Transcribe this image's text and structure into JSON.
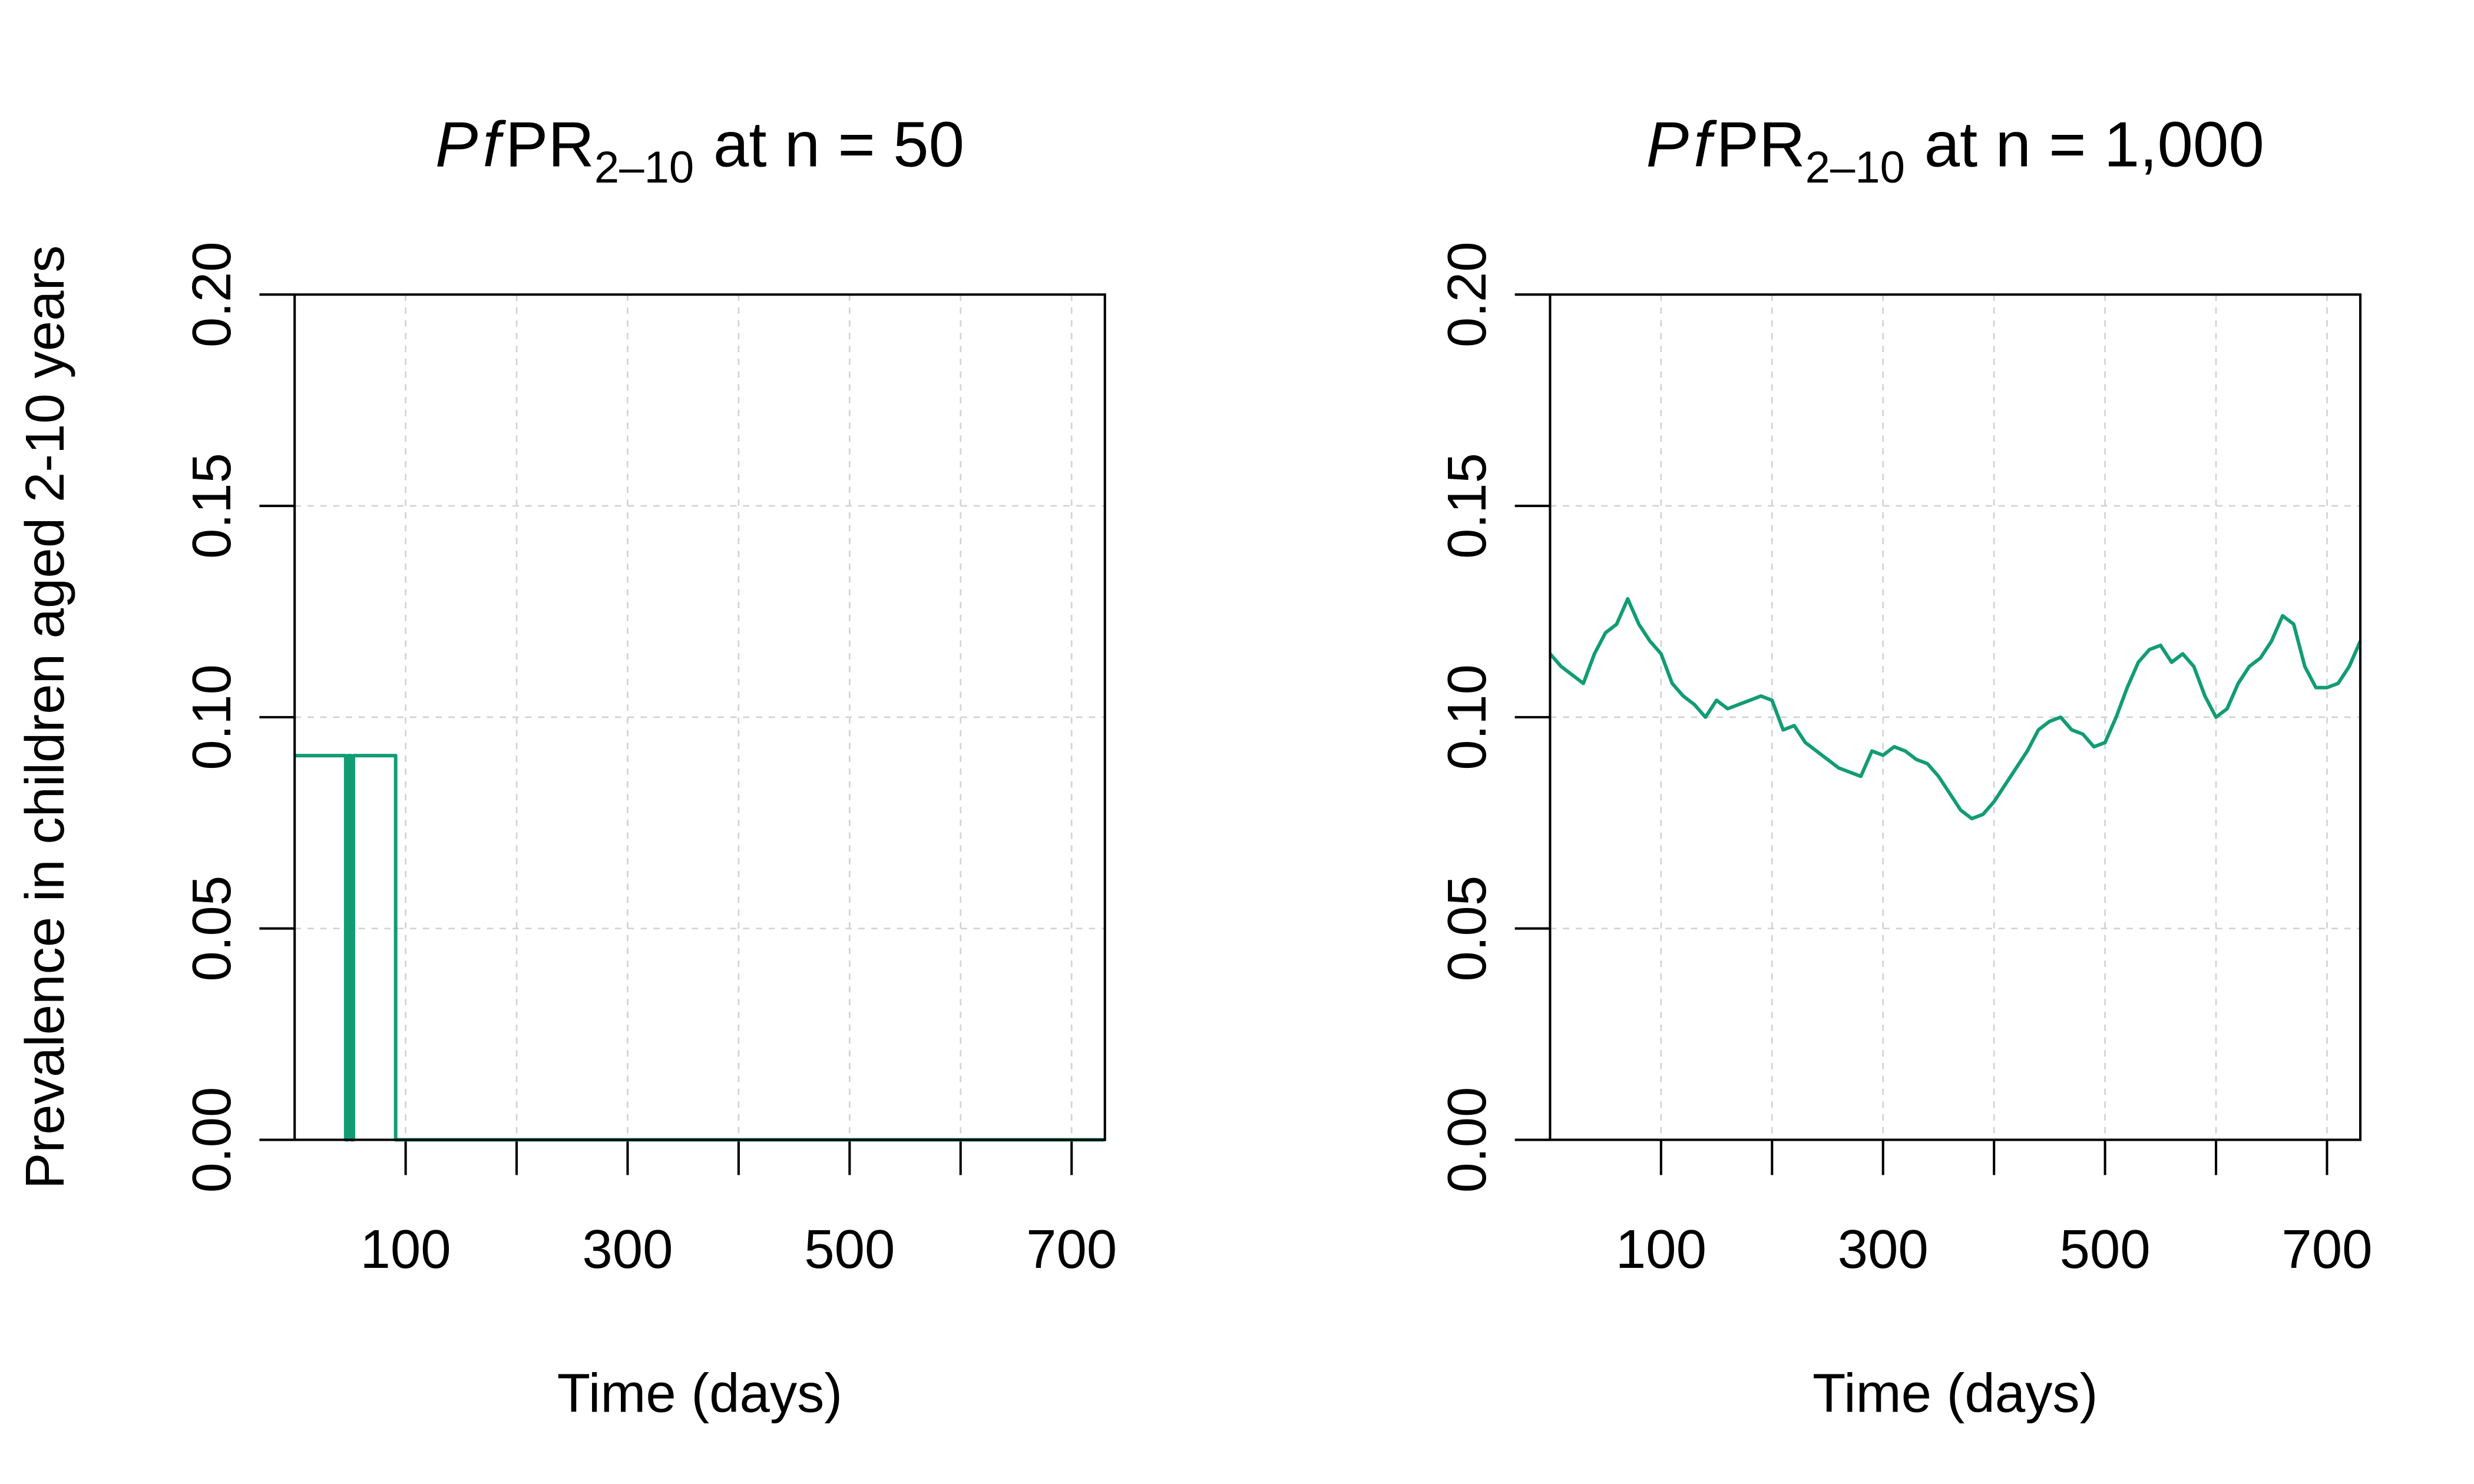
{
  "chart_data": [
    {
      "type": "line",
      "title": [
        "Pf",
        "PR",
        "2–10",
        "at n = 50"
      ],
      "x_label": "Time (days)",
      "y_label": "Prevalence in children aged 2-10 years",
      "xlim": [
        0,
        730
      ],
      "ylim": [
        0,
        0.2
      ],
      "xticks": [
        100,
        {
          "value": 200,
          "label": null
        },
        300,
        {
          "value": 400,
          "label": null
        },
        500,
        {
          "value": 600,
          "label": null
        },
        700
      ],
      "yticks": [
        {
          "value": 0,
          "label": "0.00"
        },
        {
          "value": 0.05,
          "label": "0.05"
        },
        {
          "value": 0.1,
          "label": "0.10"
        },
        {
          "value": 0.15,
          "label": "0.15"
        },
        {
          "value": 0.2,
          "label": "0.20"
        }
      ],
      "grid": true,
      "series": [
        {
          "color": "#119c74",
          "x": [
            0,
            46,
            46,
            48,
            48,
            51,
            51,
            53,
            53,
            91,
            91,
            730
          ],
          "values": [
            0.0909,
            0.0909,
            0,
            0,
            0.0909,
            0.0909,
            0,
            0,
            0.0909,
            0.0909,
            0,
            0
          ]
        }
      ]
    },
    {
      "type": "line",
      "title": [
        "Pf",
        "PR",
        "2–10",
        "at n = 1,000"
      ],
      "x_label": "Time (days)",
      "xlim": [
        0,
        730
      ],
      "ylim": [
        0,
        0.2
      ],
      "xticks": [
        100,
        {
          "value": 200,
          "label": null
        },
        300,
        {
          "value": 400,
          "label": null
        },
        500,
        {
          "value": 600,
          "label": null
        },
        700
      ],
      "yticks": [
        {
          "value": 0,
          "label": "0.00"
        },
        {
          "value": 0.05,
          "label": "0.05"
        },
        {
          "value": 0.1,
          "label": "0.10"
        },
        {
          "value": 0.15,
          "label": "0.15"
        },
        {
          "value": 0.2,
          "label": "0.20"
        }
      ],
      "grid": true,
      "series": [
        {
          "color": "#119c74",
          "x": [
            0,
            10,
            20,
            30,
            40,
            50,
            60,
            70,
            80,
            90,
            100,
            110,
            120,
            130,
            140,
            150,
            160,
            170,
            180,
            190,
            200,
            210,
            220,
            230,
            240,
            250,
            260,
            270,
            280,
            290,
            300,
            310,
            320,
            330,
            340,
            350,
            360,
            370,
            380,
            390,
            400,
            410,
            420,
            430,
            440,
            450,
            460,
            470,
            480,
            490,
            500,
            510,
            520,
            530,
            540,
            550,
            560,
            570,
            580,
            590,
            600,
            610,
            620,
            630,
            640,
            650,
            660,
            670,
            680,
            690,
            700,
            710,
            720,
            730
          ],
          "values": [
            0.115,
            0.112,
            0.11,
            0.108,
            0.115,
            0.12,
            0.122,
            0.128,
            0.122,
            0.118,
            0.115,
            0.108,
            0.105,
            0.103,
            0.1,
            0.104,
            0.102,
            0.103,
            0.104,
            0.105,
            0.104,
            0.097,
            0.098,
            0.094,
            0.092,
            0.09,
            0.088,
            0.087,
            0.086,
            0.092,
            0.091,
            0.093,
            0.092,
            0.09,
            0.089,
            0.086,
            0.082,
            0.078,
            0.076,
            0.077,
            0.08,
            0.084,
            0.088,
            0.092,
            0.097,
            0.099,
            0.1,
            0.097,
            0.096,
            0.093,
            0.094,
            0.1,
            0.107,
            0.113,
            0.116,
            0.117,
            0.113,
            0.115,
            0.112,
            0.105,
            0.1,
            0.102,
            0.108,
            0.112,
            0.114,
            0.118,
            0.124,
            0.122,
            0.112,
            0.107,
            0.107,
            0.108,
            0.112,
            0.118
          ]
        }
      ]
    }
  ]
}
